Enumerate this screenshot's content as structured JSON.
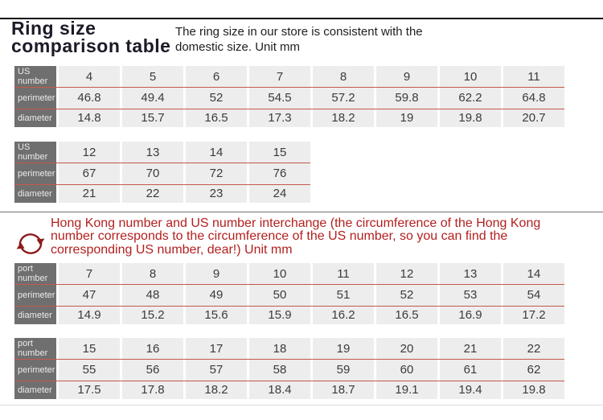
{
  "header": {
    "title": "Ring size comparison table",
    "subtitle": "The ring size in our store is consistent with the domestic size. Unit mm"
  },
  "note": {
    "icon": "exchange-arrows-icon",
    "text": "Hong Kong number and US number interchange (the circumference of the Hong Kong number corresponds to the circumference of the US number, so you can find the corresponding US number, dear!) Unit mm"
  },
  "colors": {
    "note_red_text": "#b3201f",
    "icon_red": "#8e1a1a",
    "row_divider_red": "#c35a48",
    "label_column_bg": "#6f6f6f",
    "label_text": "#ebebeb",
    "cell_bg": "#ededed",
    "cell_text": "#3b3b3b",
    "top_rule": "#141414",
    "section_rule": "#6f6f6f",
    "bottom_rule": "#dcdcdc"
  },
  "tables": [
    {
      "id": "us-number-4-11",
      "row_labels": [
        "US number",
        "perimeter",
        "diameter"
      ],
      "rows": [
        [
          "4",
          "5",
          "6",
          "7",
          "8",
          "9",
          "10",
          "11"
        ],
        [
          "46.8",
          "49.4",
          "52",
          "54.5",
          "57.2",
          "59.8",
          "62.2",
          "64.8"
        ],
        [
          "14.8",
          "15.7",
          "16.5",
          "17.3",
          "18.2",
          "19",
          "19.8",
          "20.7"
        ]
      ]
    },
    {
      "id": "us-number-12-15",
      "row_labels": [
        "US number",
        "perimeter",
        "diameter"
      ],
      "rows": [
        [
          "12",
          "13",
          "14",
          "15"
        ],
        [
          "67",
          "70",
          "72",
          "76"
        ],
        [
          "21",
          "22",
          "23",
          "24"
        ]
      ]
    },
    {
      "id": "port-number-7-14",
      "row_labels": [
        "port number",
        "perimeter",
        "diameter"
      ],
      "rows": [
        [
          "7",
          "8",
          "9",
          "10",
          "11",
          "12",
          "13",
          "14"
        ],
        [
          "47",
          "48",
          "49",
          "50",
          "51",
          "52",
          "53",
          "54"
        ],
        [
          "14.9",
          "15.2",
          "15.6",
          "15.9",
          "16.2",
          "16.5",
          "16.9",
          "17.2"
        ]
      ]
    },
    {
      "id": "port-number-15-22",
      "row_labels": [
        "port number",
        "perimeter",
        "diameter"
      ],
      "rows": [
        [
          "15",
          "16",
          "17",
          "18",
          "19",
          "20",
          "21",
          "22"
        ],
        [
          "55",
          "56",
          "57",
          "58",
          "59",
          "60",
          "61",
          "62"
        ],
        [
          "17.5",
          "17.8",
          "18.2",
          "18.4",
          "18.7",
          "19.1",
          "19.4",
          "19.8"
        ]
      ]
    }
  ]
}
